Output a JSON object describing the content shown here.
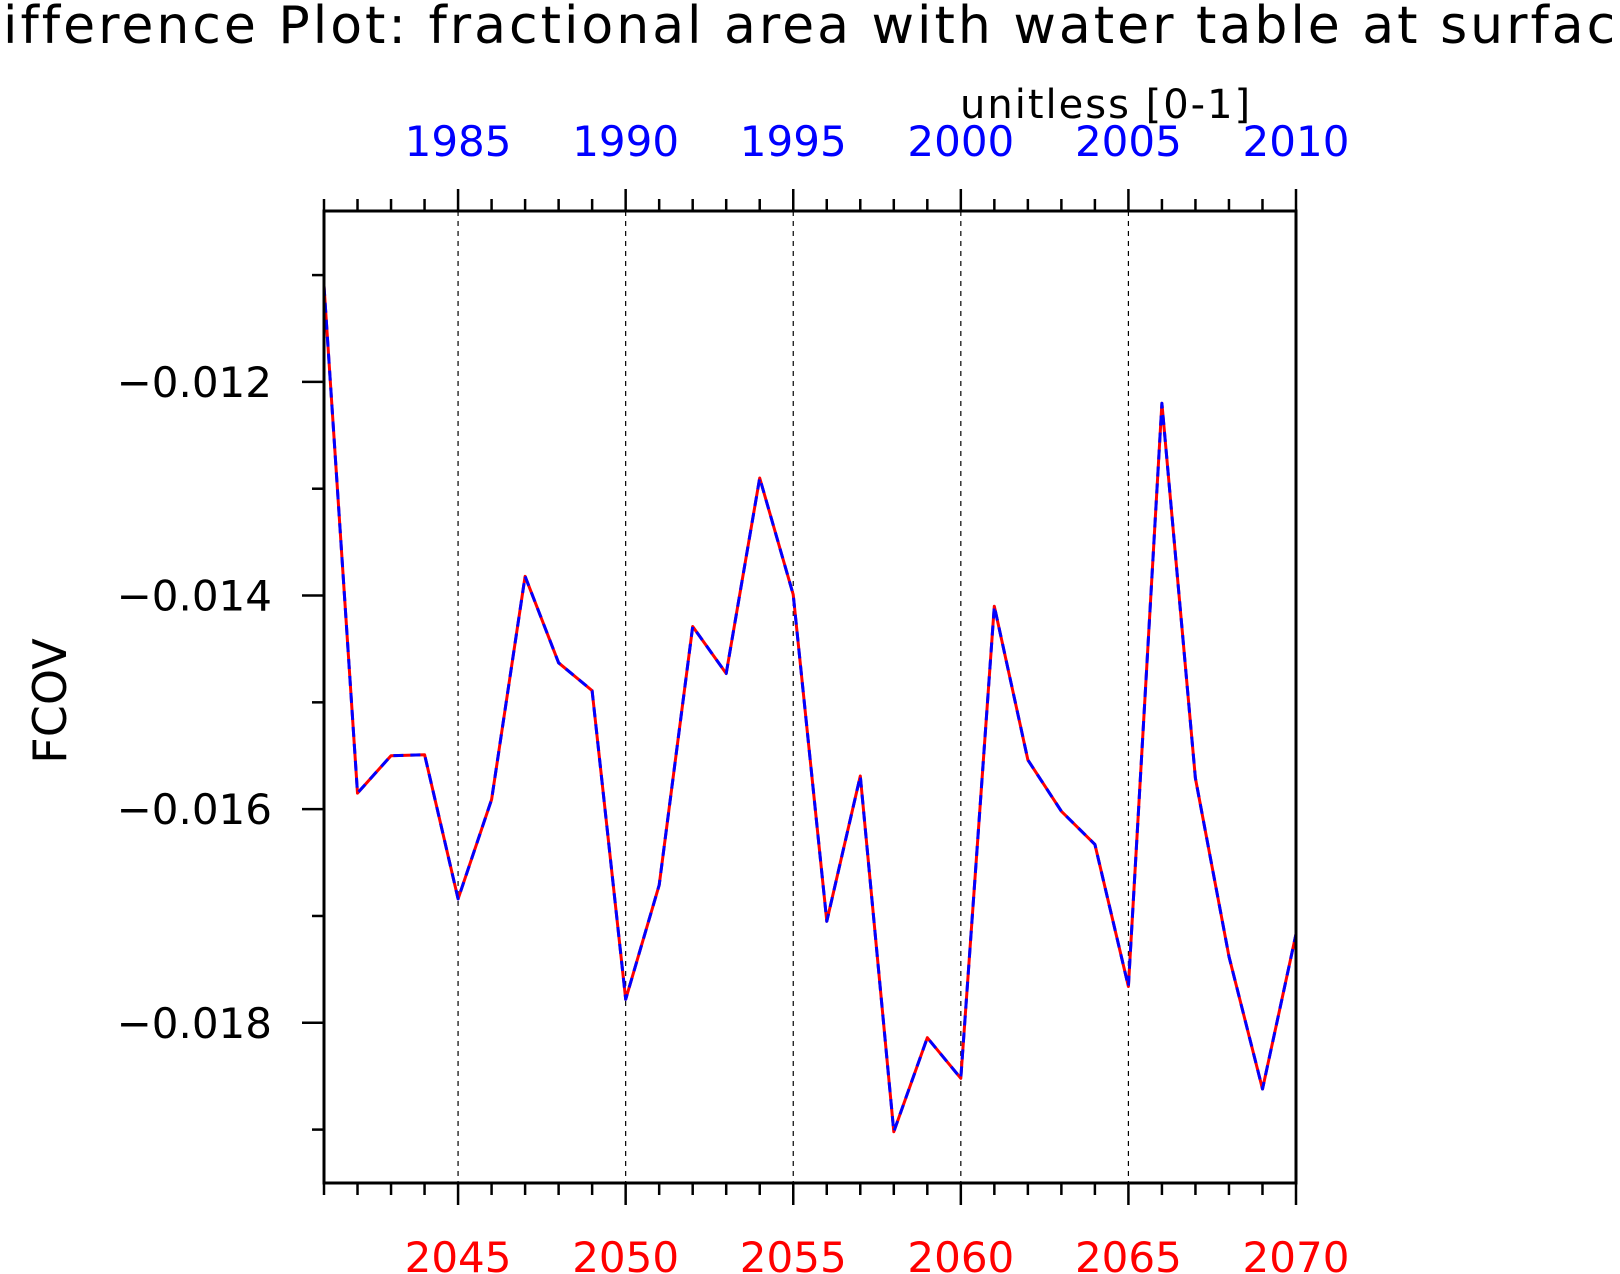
{
  "chart_data": {
    "type": "line",
    "title": "Difference Plot: fractional area with water table at surface",
    "units_label": "unitless [0-1]",
    "ylabel": "FCOV",
    "ylim": [
      -0.0195,
      -0.0104
    ],
    "yticks": [
      -0.012,
      -0.014,
      -0.016,
      -0.018
    ],
    "ytick_labels": [
      "−0.012",
      "−0.014",
      "−0.016",
      "−0.018"
    ],
    "x_bottom": {
      "range": [
        2041,
        2070
      ],
      "ticks": [
        2045,
        2050,
        2055,
        2060,
        2065,
        2070
      ],
      "color": "#ff0000"
    },
    "x_top": {
      "range": [
        1981,
        2010
      ],
      "ticks": [
        1985,
        1990,
        1995,
        2000,
        2005,
        2010
      ],
      "color": "#0000ff"
    },
    "vertical_gridlines": [
      2045,
      2050,
      2055,
      2060,
      2065
    ],
    "series": [
      {
        "color": "#ff0000",
        "style": "solid",
        "x": [
          2041,
          2042,
          2043,
          2044,
          2045,
          2046,
          2047,
          2048,
          2049,
          2050,
          2051,
          2052,
          2053,
          2054,
          2055,
          2056,
          2057,
          2058,
          2059,
          2060,
          2061,
          2062,
          2063,
          2064,
          2065,
          2066,
          2067,
          2068,
          2069,
          2070
        ],
        "values": [
          -0.0111,
          -0.01585,
          -0.0155,
          -0.01549,
          -0.01684,
          -0.01591,
          -0.01382,
          -0.01463,
          -0.01489,
          -0.01778,
          -0.01671,
          -0.01429,
          -0.01473,
          -0.0129,
          -0.01399,
          -0.01705,
          -0.01569,
          -0.01902,
          -0.01814,
          -0.01852,
          -0.0141,
          -0.01554,
          -0.01602,
          -0.01633,
          -0.01766,
          -0.0122,
          -0.01571,
          -0.01738,
          -0.01862,
          -0.01717
        ]
      },
      {
        "color": "#0000ff",
        "style": "dashed",
        "x": [
          2041,
          2042,
          2043,
          2044,
          2045,
          2046,
          2047,
          2048,
          2049,
          2050,
          2051,
          2052,
          2053,
          2054,
          2055,
          2056,
          2057,
          2058,
          2059,
          2060,
          2061,
          2062,
          2063,
          2064,
          2065,
          2066,
          2067,
          2068,
          2069,
          2070
        ],
        "values": [
          -0.0111,
          -0.01585,
          -0.0155,
          -0.01549,
          -0.01684,
          -0.01591,
          -0.01382,
          -0.01463,
          -0.01489,
          -0.01778,
          -0.01671,
          -0.01429,
          -0.01473,
          -0.0129,
          -0.01399,
          -0.01705,
          -0.01569,
          -0.01902,
          -0.01814,
          -0.01852,
          -0.0141,
          -0.01554,
          -0.01602,
          -0.01633,
          -0.01766,
          -0.0122,
          -0.01571,
          -0.01738,
          -0.01862,
          -0.01717
        ]
      }
    ]
  }
}
